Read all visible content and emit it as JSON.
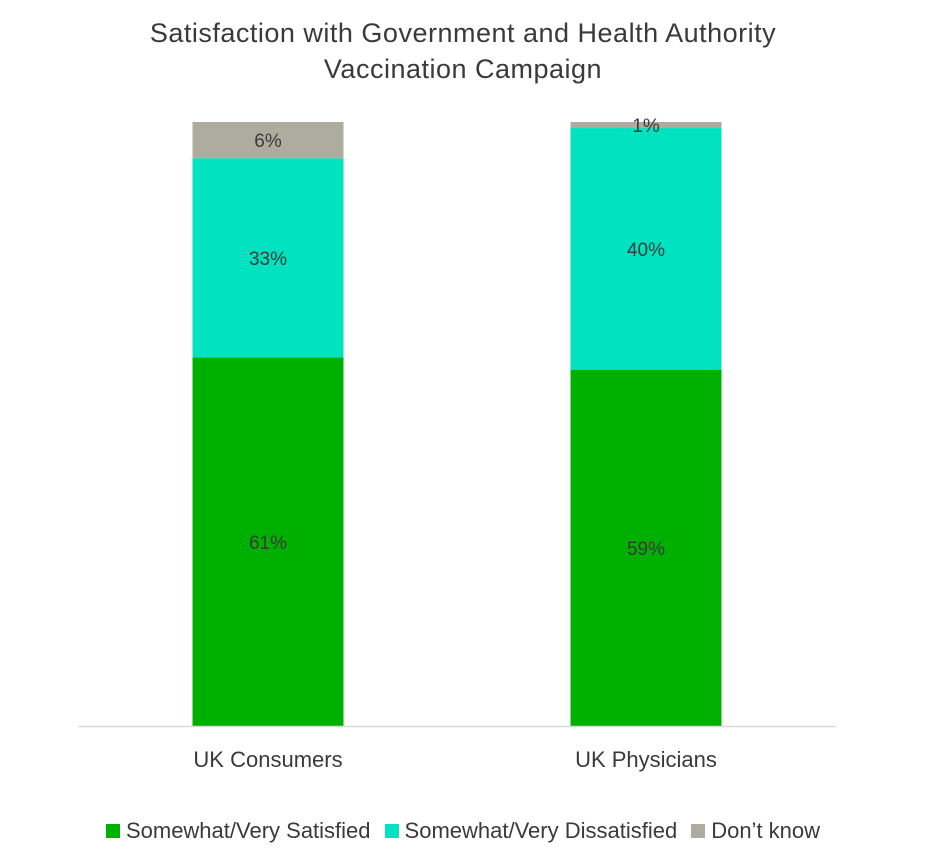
{
  "chart_data": {
    "type": "bar",
    "stacked": true,
    "title_lines": [
      "Satisfaction with Government and Health Authority",
      "Vaccination Campaign"
    ],
    "categories": [
      "UK Consumers",
      "UK Physicians"
    ],
    "series": [
      {
        "name": "Somewhat/Very Satisfied",
        "values": [
          61,
          59
        ],
        "labels": [
          "61%",
          "59%"
        ],
        "color": "#00b000"
      },
      {
        "name": "Somewhat/Very Dissatisfied",
        "values": [
          33,
          40
        ],
        "labels": [
          "33%",
          "40%"
        ],
        "color": "#00e2c0"
      },
      {
        "name": "Don’t know",
        "values": [
          6,
          1
        ],
        "labels": [
          "6%",
          "1%"
        ],
        "color": "#aeab9f"
      }
    ],
    "ylim": [
      0,
      100
    ],
    "grid": false,
    "legend_position": "bottom"
  },
  "colors": {
    "baseline": "#d9d9d9",
    "text": "#3a3a3a"
  }
}
